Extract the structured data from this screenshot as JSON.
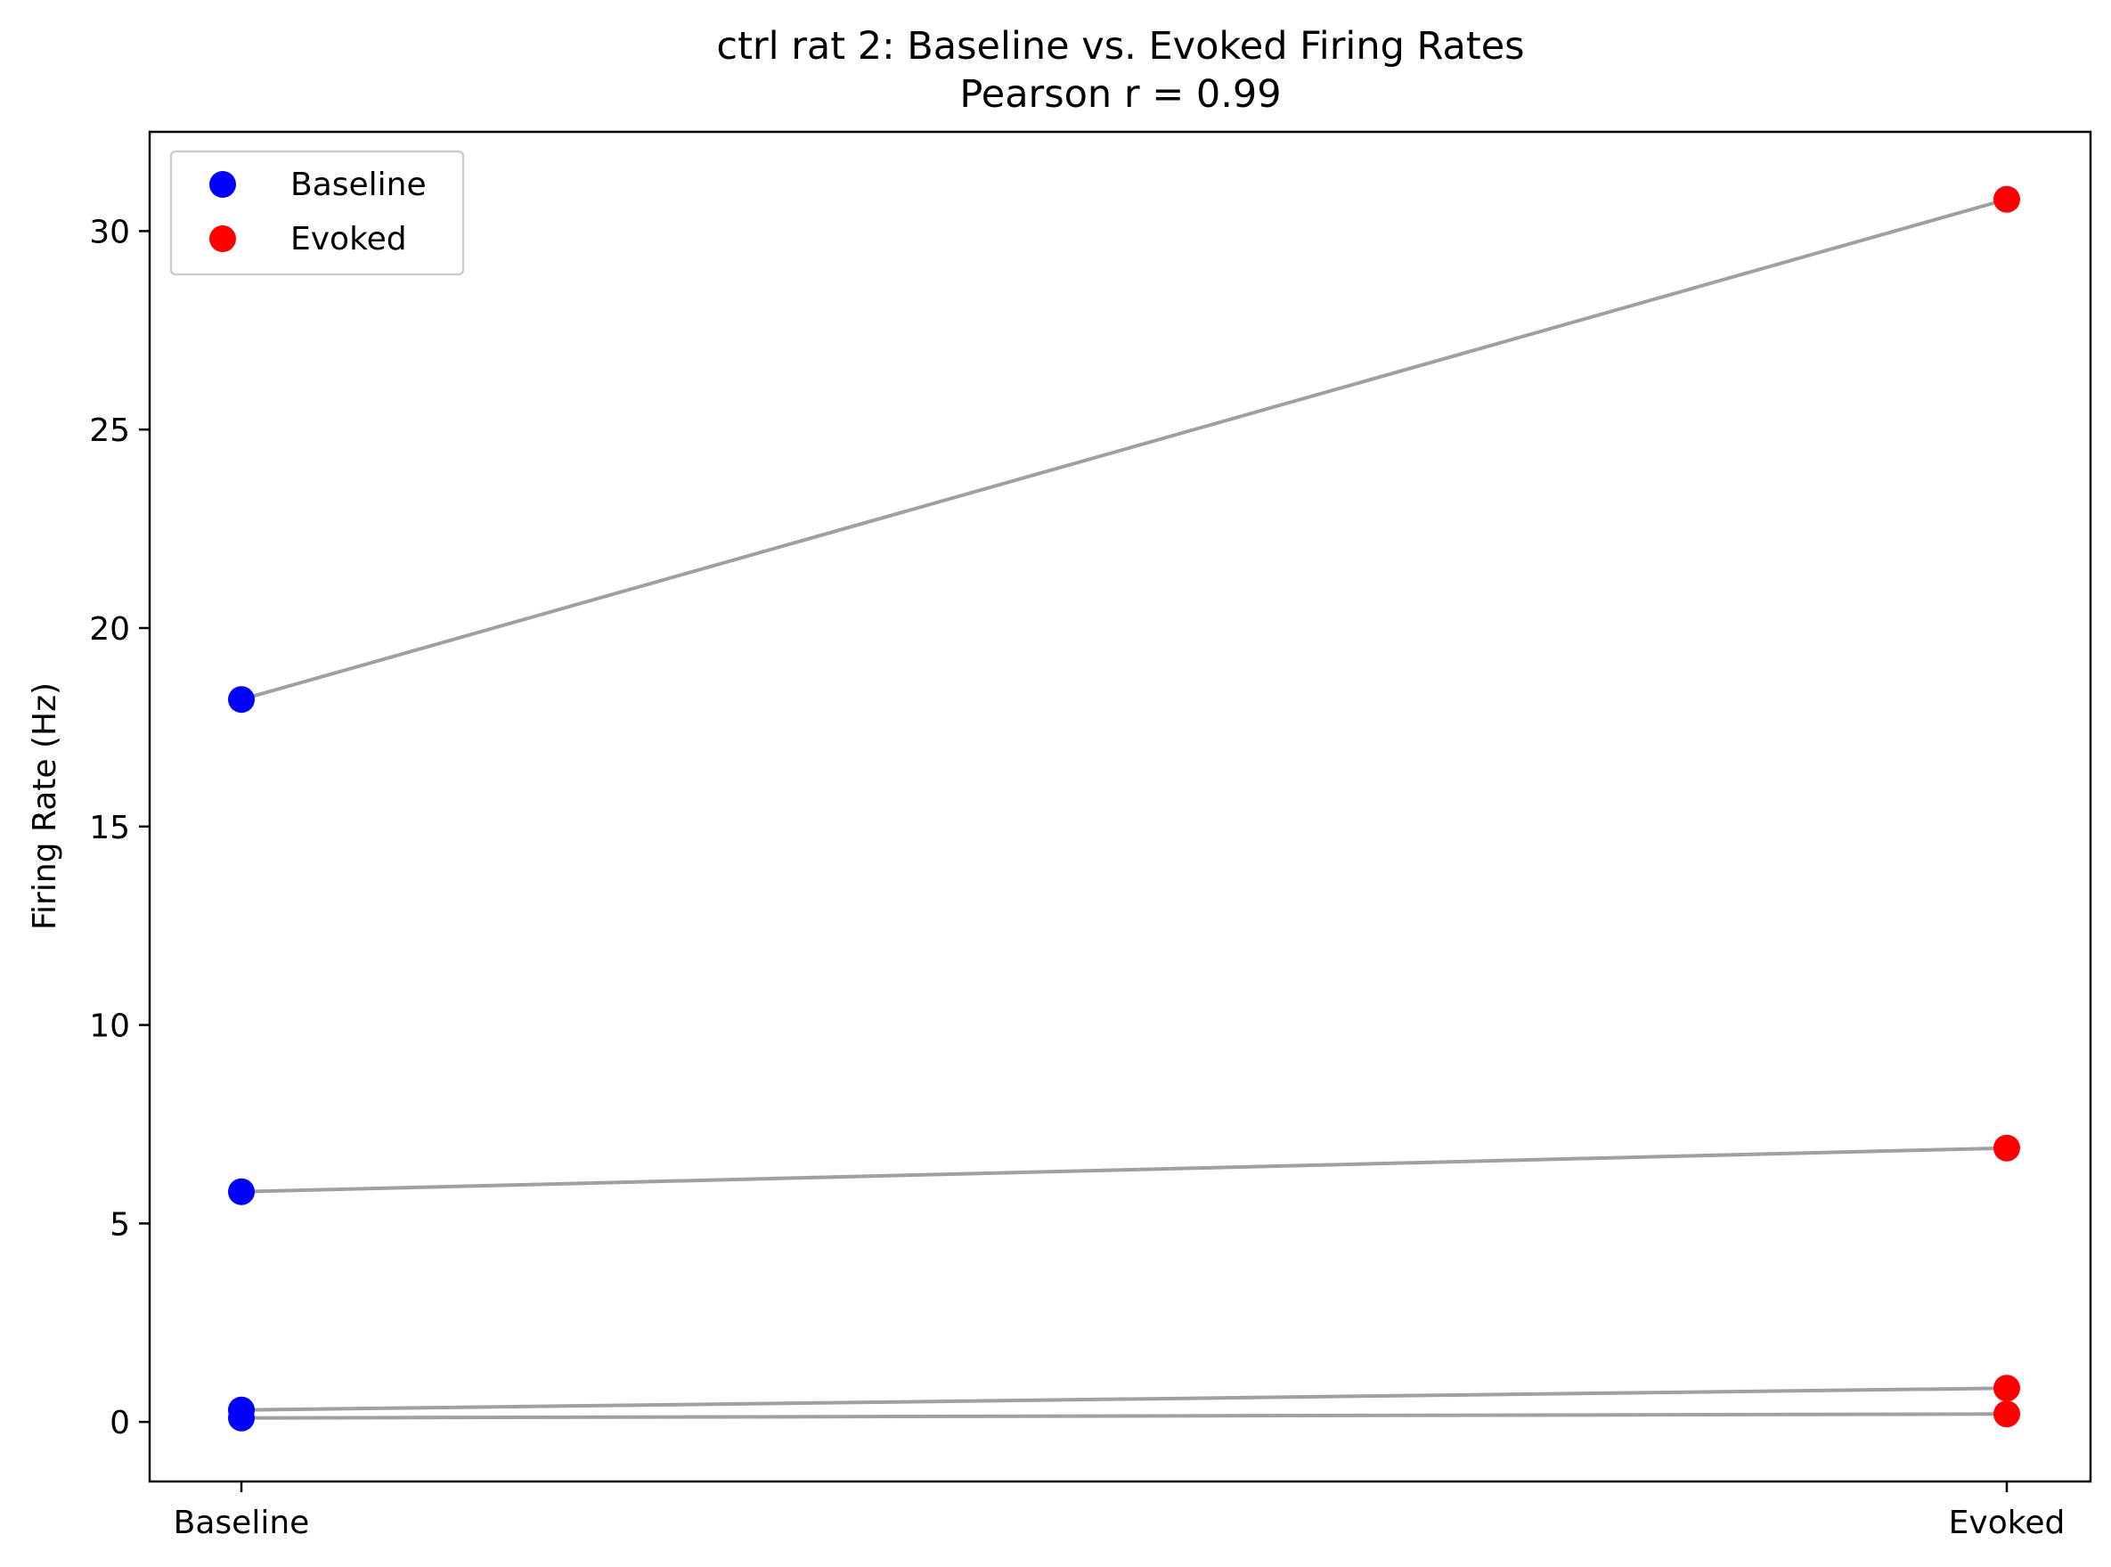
{
  "chart_data": {
    "type": "scatter",
    "title": "ctrl rat 2: Baseline vs. Evoked Firing Rates",
    "subtitle": "Pearson r = 0.99",
    "xlabel": "",
    "ylabel": "Firing Rate (Hz)",
    "categories": [
      "Baseline",
      "Evoked"
    ],
    "ylim": [
      -1.5,
      32.5
    ],
    "yticks": [
      0,
      5,
      10,
      15,
      20,
      25,
      30
    ],
    "grid": false,
    "legend_position": "top-left",
    "connector_color": "#a0a0a0",
    "series": [
      {
        "name": "Baseline",
        "color": "#0000ff",
        "values": [
          18.2,
          5.8,
          0.3,
          0.1
        ]
      },
      {
        "name": "Evoked",
        "color": "#ff0000",
        "values": [
          30.8,
          6.9,
          0.85,
          0.2
        ]
      }
    ]
  }
}
